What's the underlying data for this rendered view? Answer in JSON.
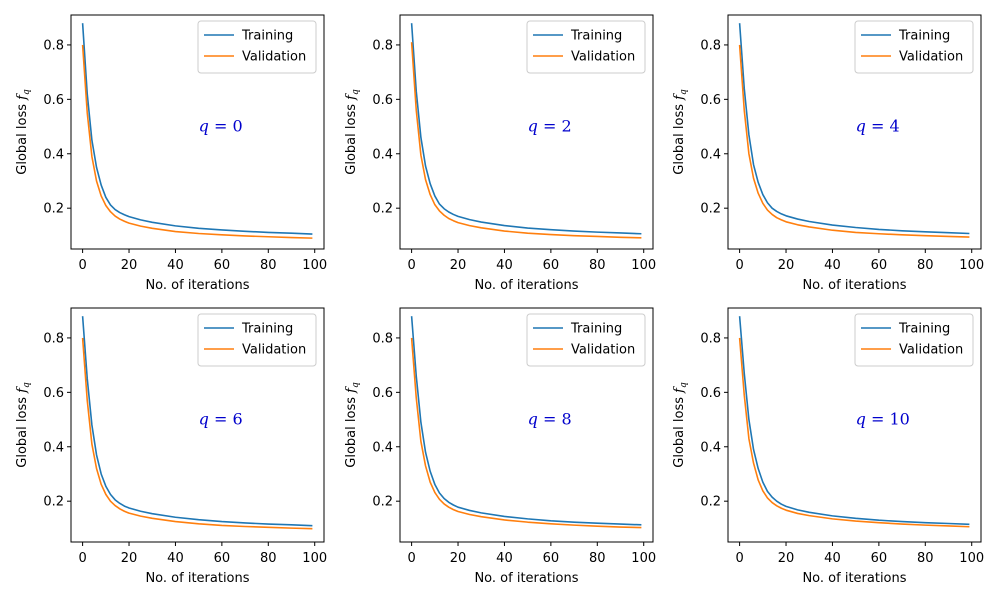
{
  "colors": {
    "training": "#1f77b4",
    "validation": "#ff7f0e",
    "annotation": "#0000cc"
  },
  "chart_data": [
    {
      "type": "line",
      "annotation": "q = 0",
      "xlabel": "No. of iterations",
      "ylabel": "Global loss f_q",
      "xlim": [
        -5,
        104
      ],
      "ylim": [
        0.05,
        0.91
      ],
      "xticks": [
        0,
        20,
        40,
        60,
        80,
        100
      ],
      "yticks": [
        0.2,
        0.4,
        0.6,
        0.8
      ],
      "legend_position": "top-right",
      "grid": false,
      "x": [
        0,
        2,
        4,
        6,
        8,
        10,
        12,
        14,
        16,
        18,
        20,
        25,
        30,
        40,
        50,
        60,
        70,
        80,
        90,
        99
      ],
      "series": [
        {
          "name": "Training",
          "values": [
            0.88,
            0.62,
            0.45,
            0.35,
            0.285,
            0.24,
            0.212,
            0.195,
            0.184,
            0.176,
            0.169,
            0.157,
            0.148,
            0.135,
            0.126,
            0.12,
            0.115,
            0.111,
            0.108,
            0.105
          ]
        },
        {
          "name": "Validation",
          "values": [
            0.8,
            0.55,
            0.39,
            0.3,
            0.245,
            0.21,
            0.187,
            0.171,
            0.16,
            0.152,
            0.145,
            0.134,
            0.126,
            0.114,
            0.107,
            0.102,
            0.098,
            0.095,
            0.092,
            0.09
          ]
        }
      ]
    },
    {
      "type": "line",
      "annotation": "q = 2",
      "xlabel": "No. of iterations",
      "ylabel": "Global loss f_q",
      "xlim": [
        -5,
        104
      ],
      "ylim": [
        0.05,
        0.91
      ],
      "xticks": [
        0,
        20,
        40,
        60,
        80,
        100
      ],
      "yticks": [
        0.2,
        0.4,
        0.6,
        0.8
      ],
      "legend_position": "top-right",
      "grid": false,
      "x": [
        0,
        2,
        4,
        6,
        8,
        10,
        12,
        14,
        16,
        18,
        20,
        25,
        30,
        40,
        50,
        60,
        70,
        80,
        90,
        99
      ],
      "series": [
        {
          "name": "Training",
          "values": [
            0.88,
            0.63,
            0.46,
            0.355,
            0.29,
            0.245,
            0.215,
            0.198,
            0.186,
            0.177,
            0.17,
            0.158,
            0.149,
            0.136,
            0.127,
            0.121,
            0.116,
            0.112,
            0.109,
            0.106
          ]
        },
        {
          "name": "Validation",
          "values": [
            0.81,
            0.56,
            0.395,
            0.305,
            0.25,
            0.213,
            0.19,
            0.174,
            0.162,
            0.154,
            0.147,
            0.136,
            0.128,
            0.116,
            0.108,
            0.103,
            0.099,
            0.096,
            0.093,
            0.091
          ]
        }
      ]
    },
    {
      "type": "line",
      "annotation": "q = 4",
      "xlabel": "No. of iterations",
      "ylabel": "Global loss f_q",
      "xlim": [
        -5,
        104
      ],
      "ylim": [
        0.05,
        0.91
      ],
      "xticks": [
        0,
        20,
        40,
        60,
        80,
        100
      ],
      "yticks": [
        0.2,
        0.4,
        0.6,
        0.8
      ],
      "legend_position": "top-right",
      "grid": false,
      "x": [
        0,
        2,
        4,
        6,
        8,
        10,
        12,
        14,
        16,
        18,
        20,
        25,
        30,
        40,
        50,
        60,
        70,
        80,
        90,
        99
      ],
      "series": [
        {
          "name": "Training",
          "values": [
            0.88,
            0.64,
            0.47,
            0.36,
            0.295,
            0.25,
            0.22,
            0.2,
            0.188,
            0.179,
            0.172,
            0.16,
            0.151,
            0.138,
            0.129,
            0.122,
            0.117,
            0.113,
            0.11,
            0.107
          ]
        },
        {
          "name": "Validation",
          "values": [
            0.8,
            0.56,
            0.4,
            0.31,
            0.255,
            0.218,
            0.193,
            0.177,
            0.165,
            0.157,
            0.15,
            0.139,
            0.131,
            0.119,
            0.111,
            0.106,
            0.102,
            0.099,
            0.096,
            0.094
          ]
        }
      ]
    },
    {
      "type": "line",
      "annotation": "q = 6",
      "xlabel": "No. of iterations",
      "ylabel": "Global loss f_q",
      "xlim": [
        -5,
        104
      ],
      "ylim": [
        0.05,
        0.91
      ],
      "xticks": [
        0,
        20,
        40,
        60,
        80,
        100
      ],
      "yticks": [
        0.2,
        0.4,
        0.6,
        0.8
      ],
      "legend_position": "top-right",
      "grid": false,
      "x": [
        0,
        2,
        4,
        6,
        8,
        10,
        12,
        14,
        16,
        18,
        20,
        25,
        30,
        40,
        50,
        60,
        70,
        80,
        90,
        99
      ],
      "series": [
        {
          "name": "Training",
          "values": [
            0.88,
            0.65,
            0.48,
            0.37,
            0.3,
            0.255,
            0.225,
            0.205,
            0.192,
            0.182,
            0.175,
            0.163,
            0.154,
            0.141,
            0.132,
            0.125,
            0.12,
            0.116,
            0.113,
            0.11
          ]
        },
        {
          "name": "Validation",
          "values": [
            0.8,
            0.57,
            0.41,
            0.32,
            0.262,
            0.225,
            0.2,
            0.184,
            0.172,
            0.163,
            0.156,
            0.145,
            0.137,
            0.125,
            0.117,
            0.111,
            0.107,
            0.104,
            0.101,
            0.099
          ]
        }
      ]
    },
    {
      "type": "line",
      "annotation": "q = 8",
      "xlabel": "No. of iterations",
      "ylabel": "Global loss f_q",
      "xlim": [
        -5,
        104
      ],
      "ylim": [
        0.05,
        0.91
      ],
      "xticks": [
        0,
        20,
        40,
        60,
        80,
        100
      ],
      "yticks": [
        0.2,
        0.4,
        0.6,
        0.8
      ],
      "legend_position": "top-right",
      "grid": false,
      "x": [
        0,
        2,
        4,
        6,
        8,
        10,
        12,
        14,
        16,
        18,
        20,
        25,
        30,
        40,
        50,
        60,
        70,
        80,
        90,
        99
      ],
      "series": [
        {
          "name": "Training",
          "values": [
            0.88,
            0.66,
            0.49,
            0.38,
            0.31,
            0.262,
            0.23,
            0.21,
            0.196,
            0.186,
            0.178,
            0.166,
            0.157,
            0.144,
            0.135,
            0.128,
            0.123,
            0.119,
            0.116,
            0.113
          ]
        },
        {
          "name": "Validation",
          "values": [
            0.8,
            0.58,
            0.42,
            0.33,
            0.27,
            0.232,
            0.207,
            0.19,
            0.178,
            0.169,
            0.162,
            0.151,
            0.143,
            0.131,
            0.123,
            0.117,
            0.112,
            0.108,
            0.105,
            0.103
          ]
        }
      ]
    },
    {
      "type": "line",
      "annotation": "q = 10",
      "xlabel": "No. of iterations",
      "ylabel": "Global loss f_q",
      "xlim": [
        -5,
        104
      ],
      "ylim": [
        0.05,
        0.91
      ],
      "xticks": [
        0,
        20,
        40,
        60,
        80,
        100
      ],
      "yticks": [
        0.2,
        0.4,
        0.6,
        0.8
      ],
      "legend_position": "top-right",
      "grid": false,
      "x": [
        0,
        2,
        4,
        6,
        8,
        10,
        12,
        14,
        16,
        18,
        20,
        25,
        30,
        40,
        50,
        60,
        70,
        80,
        90,
        99
      ],
      "series": [
        {
          "name": "Training",
          "values": [
            0.88,
            0.67,
            0.5,
            0.39,
            0.32,
            0.27,
            0.236,
            0.215,
            0.2,
            0.189,
            0.181,
            0.168,
            0.159,
            0.146,
            0.137,
            0.13,
            0.125,
            0.121,
            0.118,
            0.115
          ]
        },
        {
          "name": "Validation",
          "values": [
            0.8,
            0.59,
            0.43,
            0.34,
            0.278,
            0.238,
            0.212,
            0.195,
            0.183,
            0.174,
            0.167,
            0.155,
            0.147,
            0.135,
            0.127,
            0.121,
            0.116,
            0.112,
            0.109,
            0.106
          ]
        }
      ]
    }
  ]
}
